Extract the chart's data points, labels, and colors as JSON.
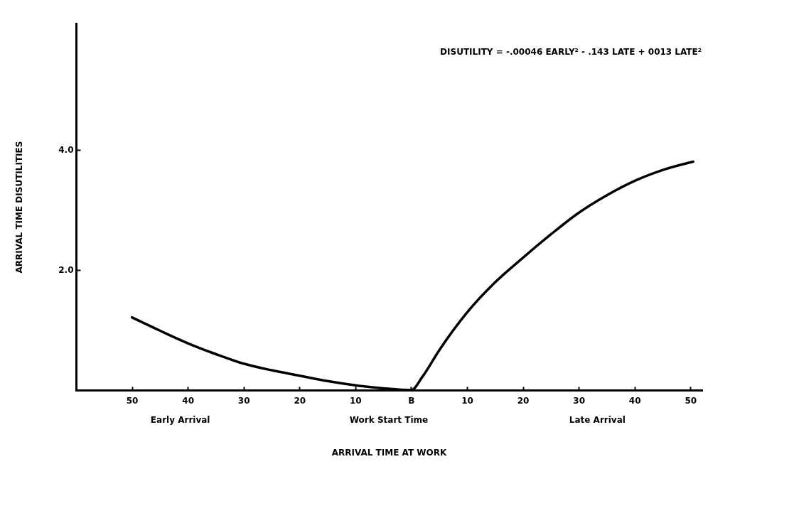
{
  "chart_data": {
    "type": "line",
    "xlabel": "ARRIVAL TIME AT WORK",
    "ylabel": "ARRIVAL TIME  DISUTILITIES",
    "x": [
      -50,
      -45,
      -40,
      -35,
      -30,
      -25,
      -20,
      -15,
      -10,
      -5,
      0,
      2,
      5,
      10,
      15,
      20,
      25,
      30,
      35,
      40,
      45,
      50.5
    ],
    "series": [
      {
        "color": "#000000",
        "values": [
          1.21,
          0.99,
          0.78,
          0.6,
          0.44,
          0.33,
          0.24,
          0.15,
          0.08,
          0.03,
          0,
          0.22,
          0.66,
          1.29,
          1.79,
          2.2,
          2.59,
          2.95,
          3.24,
          3.48,
          3.66,
          3.8
        ]
      }
    ],
    "xlim": [
      -60,
      52
    ],
    "ylim": [
      0,
      6.1
    ],
    "xticks": [
      {
        "value": -50,
        "label": "50"
      },
      {
        "value": -40,
        "label": "40"
      },
      {
        "value": -30,
        "label": "30"
      },
      {
        "value": -20,
        "label": "20"
      },
      {
        "value": -10,
        "label": "10"
      },
      {
        "value": 0,
        "label": "B"
      },
      10,
      20,
      30,
      40,
      50
    ],
    "yticks": [
      {
        "value": 2,
        "label": "2.0"
      },
      {
        "value": 4,
        "label": "4.0"
      }
    ],
    "annotations": [
      "DISUTILITY = -.00046 EARLY² - .143 LATE + 0013 LATE²",
      "Early Arrival",
      "Work Start Time",
      "Late Arrival"
    ]
  }
}
